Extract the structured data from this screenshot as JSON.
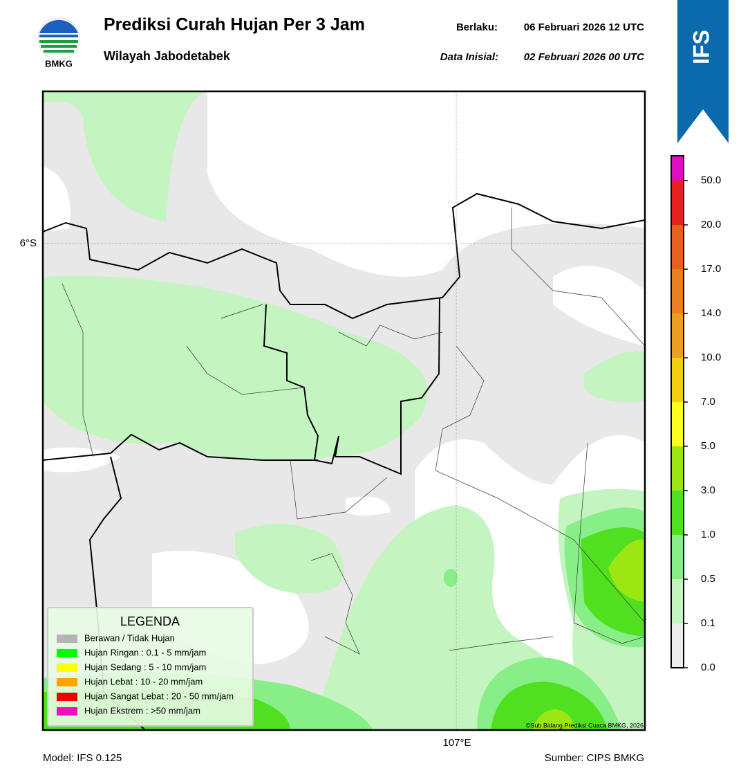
{
  "header": {
    "logo_text": "BMKG",
    "title": "Prediksi Curah Hujan Per 3 Jam",
    "subtitle": "Wilayah Jabodetabek",
    "valid_label": "Berlaku:",
    "valid_time": "06 Februari 2026 12 UTC",
    "init_label": "Data Inisial:",
    "init_time": "02 Februari 2026 00 UTC",
    "badge": "IFS"
  },
  "map": {
    "lat_label": "6°S",
    "lon_label": "107°E",
    "copyright": "©Sub Bidang Prediksi Cuaca BMKG, 2026"
  },
  "legend": {
    "title": "LEGENDA",
    "items": [
      {
        "label": "Berawan / Tidak Hujan",
        "color": "#b4b4b4"
      },
      {
        "label": "Hujan Ringan : 0.1 - 5 mm/jam",
        "color": "#00ff00"
      },
      {
        "label": "Hujan Sedang : 5 - 10 mm/jam",
        "color": "#ffff00"
      },
      {
        "label": "Hujan Lebat : 10 - 20 mm/jam",
        "color": "#ffa500"
      },
      {
        "label": "Hujan Sangat Lebat : 20 - 50 mm/jam",
        "color": "#ee0000"
      },
      {
        "label": "Hujan Ekstrem : >50 mm/jam",
        "color": "#ee10c0"
      }
    ]
  },
  "colorbar": {
    "ticks": [
      {
        "value": 0,
        "label": "0.0"
      },
      {
        "value": 0.1,
        "label": "0.1"
      },
      {
        "value": 0.5,
        "label": "0.5"
      },
      {
        "value": 1,
        "label": "1.0"
      },
      {
        "value": 3,
        "label": "3.0"
      },
      {
        "value": 5,
        "label": "5.0"
      },
      {
        "value": 7,
        "label": "7.0"
      },
      {
        "value": 10,
        "label": "10.0"
      },
      {
        "value": 14,
        "label": "14.0"
      },
      {
        "value": 17,
        "label": "17.0"
      },
      {
        "value": 20,
        "label": "20.0"
      },
      {
        "value": 50,
        "label": "50.0"
      }
    ],
    "colors": [
      "#ececec",
      "#c4f4c0",
      "#88ee88",
      "#50e020",
      "#9ce614",
      "#ffff20",
      "#f2d010",
      "#eca020",
      "#e88020",
      "#e86020",
      "#e82020",
      "#e010c0"
    ]
  },
  "footer": {
    "model": "Model: IFS 0.125",
    "source": "Sumber: CIPS BMKG"
  }
}
